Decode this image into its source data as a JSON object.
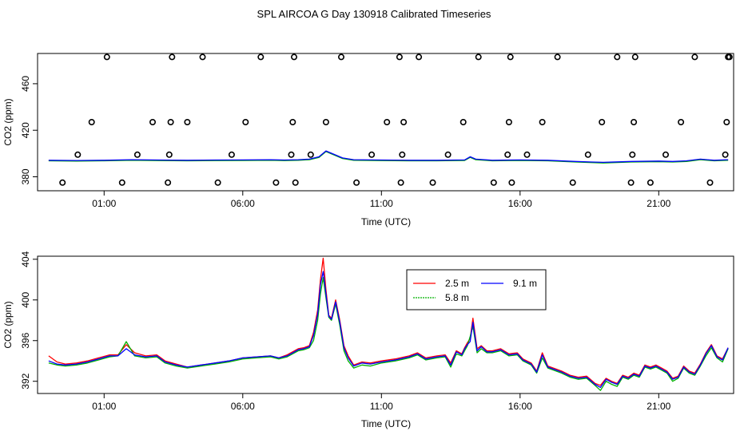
{
  "title": "SPL AIRCOA G  Day 130918  Calibrated Timeseries",
  "chart_data": [
    {
      "type": "scatter",
      "name": "calibration-plot",
      "xlabel": "Time (UTC)",
      "ylabel": "CO2 (ppm)",
      "xlim": [
        -1.4,
        23.7
      ],
      "ylim": [
        368,
        486
      ],
      "xticks": [
        1,
        6,
        11,
        16,
        21
      ],
      "xtick_labels": [
        "01:00",
        "06:00",
        "11:00",
        "16:00",
        "21:00"
      ],
      "yticks": [
        380,
        420,
        460
      ],
      "ytick_labels": [
        "380",
        "420",
        "460"
      ],
      "marker_series": {
        "name": "calibration-points",
        "x": [
          -0.5,
          0.05,
          0.55,
          1.1,
          1.65,
          2.2,
          2.75,
          3.3,
          3.35,
          3.4,
          3.45,
          4.0,
          4.55,
          5.1,
          5.6,
          6.1,
          6.65,
          7.2,
          7.75,
          7.8,
          7.85,
          7.9,
          8.45,
          9.0,
          9.55,
          10.1,
          10.65,
          11.2,
          11.65,
          11.7,
          11.75,
          11.8,
          12.35,
          12.85,
          13.4,
          13.95,
          14.5,
          15.05,
          15.55,
          15.6,
          15.65,
          15.7,
          16.25,
          16.8,
          17.35,
          17.9,
          18.45,
          18.95,
          19.5,
          20.0,
          20.05,
          20.1,
          20.15,
          20.7,
          21.25,
          21.8,
          22.3,
          22.85,
          23.4,
          23.45,
          23.5,
          23.55
        ],
        "y": [
          375,
          399,
          427,
          483,
          375,
          399,
          427,
          375,
          399,
          427,
          483,
          427,
          483,
          375,
          399,
          427,
          483,
          375,
          399,
          427,
          483,
          375,
          399,
          427,
          483,
          375,
          399,
          427,
          483,
          375,
          399,
          427,
          483,
          375,
          399,
          427,
          483,
          375,
          399,
          427,
          483,
          375,
          399,
          427,
          483,
          375,
          399,
          427,
          483,
          375,
          399,
          427,
          483,
          375,
          399,
          427,
          483,
          375,
          399,
          427,
          483,
          483
        ]
      },
      "line_series": [
        {
          "name": "2.5 m",
          "color": "#ff0000",
          "offset": 0.0
        },
        {
          "name": "5.8 m",
          "color": "#00b000",
          "offset": -0.3
        },
        {
          "name": "9.1 m",
          "color": "#0000ff",
          "offset": 0.2
        }
      ],
      "base_line": {
        "x": [
          -1.0,
          0.0,
          1.0,
          2.0,
          3.0,
          4.0,
          5.0,
          6.0,
          7.0,
          7.5,
          8.0,
          8.4,
          8.75,
          9.0,
          9.3,
          9.6,
          10.0,
          11.0,
          12.0,
          13.0,
          14.0,
          14.2,
          14.4,
          15.0,
          16.0,
          17.0,
          18.0,
          18.6,
          19.0,
          20.0,
          21.0,
          21.5,
          22.0,
          22.5,
          23.0,
          23.5
        ],
        "y": [
          394,
          393.8,
          394,
          394.5,
          394.2,
          394,
          394.2,
          394.3,
          394.5,
          394.2,
          394.5,
          395,
          397,
          402,
          399,
          396,
          394.5,
          394.2,
          394,
          394,
          394.3,
          397,
          395,
          394,
          394.3,
          394,
          393,
          392.5,
          392.2,
          393,
          393.3,
          393,
          393.5,
          395,
          394,
          394.5
        ]
      }
    },
    {
      "type": "line",
      "name": "timeseries-plot",
      "xlabel": "Time (UTC)",
      "ylabel": "CO2 (ppm)",
      "xlim": [
        -1.4,
        23.7
      ],
      "ylim": [
        390.8,
        404.3
      ],
      "xticks": [
        1,
        6,
        11,
        16,
        21
      ],
      "xtick_labels": [
        "01:00",
        "06:00",
        "11:00",
        "16:00",
        "21:00"
      ],
      "yticks": [
        392,
        396,
        400,
        404
      ],
      "ytick_labels": [
        "392",
        "396",
        "400",
        "404"
      ],
      "legend": {
        "position": "top-center",
        "entries": [
          "2.5 m",
          "9.1 m",
          "5.8 m"
        ]
      },
      "series": [
        {
          "name": "2.5 m",
          "color": "#ff0000",
          "x": [
            -1.0,
            -0.7,
            -0.4,
            0.0,
            0.4,
            0.8,
            1.2,
            1.5,
            1.8,
            2.1,
            2.5,
            2.9,
            3.2,
            3.6,
            4.0,
            4.5,
            5.0,
            5.5,
            6.0,
            6.5,
            7.0,
            7.3,
            7.6,
            8.0,
            8.2,
            8.4,
            8.55,
            8.7,
            8.8,
            8.9,
            9.0,
            9.1,
            9.2,
            9.35,
            9.5,
            9.65,
            9.8,
            10.0,
            10.3,
            10.6,
            11.0,
            11.5,
            12.0,
            12.3,
            12.6,
            13.0,
            13.3,
            13.5,
            13.7,
            13.9,
            14.0,
            14.1,
            14.2,
            14.3,
            14.45,
            14.6,
            14.8,
            15.0,
            15.3,
            15.6,
            15.9,
            16.1,
            16.4,
            16.6,
            16.8,
            17.0,
            17.2,
            17.5,
            17.8,
            18.1,
            18.4,
            18.7,
            18.9,
            19.1,
            19.3,
            19.5,
            19.7,
            19.9,
            20.1,
            20.3,
            20.5,
            20.7,
            20.9,
            21.1,
            21.3,
            21.5,
            21.7,
            21.9,
            22.1,
            22.3,
            22.5,
            22.7,
            22.9,
            23.1,
            23.3,
            23.5
          ],
          "y": [
            394.5,
            393.9,
            393.7,
            393.8,
            394.0,
            394.3,
            394.6,
            394.6,
            395.6,
            394.8,
            394.5,
            394.6,
            394.0,
            393.7,
            393.4,
            393.6,
            393.8,
            394.0,
            394.3,
            394.4,
            394.5,
            394.3,
            394.6,
            395.2,
            395.3,
            395.5,
            396.8,
            399.0,
            402.0,
            404.1,
            401.0,
            398.5,
            398.2,
            400.0,
            398.0,
            395.5,
            394.5,
            393.6,
            393.9,
            393.8,
            394.0,
            394.2,
            394.5,
            394.8,
            394.3,
            394.5,
            394.6,
            393.8,
            395.0,
            394.7,
            395.3,
            395.8,
            396.2,
            398.2,
            395.2,
            395.5,
            395.0,
            395.0,
            395.2,
            394.7,
            394.8,
            394.2,
            393.8,
            393.0,
            394.8,
            393.5,
            393.3,
            393.0,
            392.6,
            392.4,
            392.5,
            391.8,
            391.6,
            392.3,
            392.0,
            391.8,
            392.6,
            392.4,
            392.8,
            392.6,
            393.6,
            393.4,
            393.6,
            393.3,
            393.0,
            392.3,
            392.5,
            393.5,
            393.0,
            392.8,
            393.7,
            394.8,
            395.6,
            394.5,
            394.2,
            395.3
          ]
        },
        {
          "name": "5.8 m",
          "color": "#00b000",
          "x": [
            -1.0,
            -0.7,
            -0.4,
            0.0,
            0.4,
            0.8,
            1.2,
            1.5,
            1.8,
            2.1,
            2.5,
            2.9,
            3.2,
            3.6,
            4.0,
            4.5,
            5.0,
            5.5,
            6.0,
            6.5,
            7.0,
            7.3,
            7.6,
            8.0,
            8.2,
            8.4,
            8.55,
            8.7,
            8.8,
            8.9,
            9.0,
            9.1,
            9.2,
            9.35,
            9.5,
            9.65,
            9.8,
            10.0,
            10.3,
            10.6,
            11.0,
            11.5,
            12.0,
            12.3,
            12.6,
            13.0,
            13.3,
            13.5,
            13.7,
            13.9,
            14.0,
            14.1,
            14.2,
            14.3,
            14.45,
            14.6,
            14.8,
            15.0,
            15.3,
            15.6,
            15.9,
            16.1,
            16.4,
            16.6,
            16.8,
            17.0,
            17.2,
            17.5,
            17.8,
            18.1,
            18.4,
            18.7,
            18.9,
            19.1,
            19.3,
            19.5,
            19.7,
            19.9,
            20.1,
            20.3,
            20.5,
            20.7,
            20.9,
            21.1,
            21.3,
            21.5,
            21.7,
            21.9,
            22.1,
            22.3,
            22.5,
            22.7,
            22.9,
            23.1,
            23.3,
            23.5
          ],
          "y": [
            393.8,
            393.6,
            393.5,
            393.6,
            393.8,
            394.1,
            394.4,
            394.5,
            395.9,
            394.5,
            394.3,
            394.4,
            393.8,
            393.5,
            393.3,
            393.5,
            393.7,
            393.9,
            394.2,
            394.3,
            394.4,
            394.2,
            394.4,
            395.0,
            395.1,
            395.3,
            396.0,
            398.0,
            400.6,
            402.2,
            400.2,
            398.3,
            398.0,
            399.6,
            397.5,
            395.0,
            394.0,
            393.3,
            393.6,
            393.5,
            393.8,
            394.0,
            394.3,
            394.6,
            394.1,
            394.3,
            394.4,
            393.4,
            394.7,
            394.5,
            395.0,
            395.5,
            396.4,
            397.4,
            394.8,
            395.2,
            394.8,
            394.8,
            395.0,
            394.5,
            394.6,
            394.0,
            393.6,
            392.8,
            394.3,
            393.3,
            393.1,
            392.8,
            392.4,
            392.2,
            392.3,
            391.6,
            391.1,
            392.0,
            391.7,
            391.5,
            392.4,
            392.2,
            392.6,
            392.4,
            393.4,
            393.2,
            393.4,
            393.1,
            392.8,
            392.0,
            392.3,
            393.3,
            392.8,
            392.6,
            393.5,
            394.5,
            395.3,
            394.3,
            393.9,
            395.2
          ]
        },
        {
          "name": "9.1 m",
          "color": "#0000ff",
          "x": [
            -1.0,
            -0.7,
            -0.4,
            0.0,
            0.4,
            0.8,
            1.2,
            1.5,
            1.8,
            2.1,
            2.5,
            2.9,
            3.2,
            3.6,
            4.0,
            4.5,
            5.0,
            5.5,
            6.0,
            6.5,
            7.0,
            7.3,
            7.6,
            8.0,
            8.2,
            8.4,
            8.55,
            8.7,
            8.8,
            8.9,
            9.0,
            9.1,
            9.2,
            9.35,
            9.5,
            9.65,
            9.8,
            10.0,
            10.3,
            10.6,
            11.0,
            11.5,
            12.0,
            12.3,
            12.6,
            13.0,
            13.3,
            13.5,
            13.7,
            13.9,
            14.0,
            14.1,
            14.2,
            14.3,
            14.45,
            14.6,
            14.8,
            15.0,
            15.3,
            15.6,
            15.9,
            16.1,
            16.4,
            16.6,
            16.8,
            17.0,
            17.2,
            17.5,
            17.8,
            18.1,
            18.4,
            18.7,
            18.9,
            19.1,
            19.3,
            19.5,
            19.7,
            19.9,
            20.1,
            20.3,
            20.5,
            20.7,
            20.9,
            21.1,
            21.3,
            21.5,
            21.7,
            21.9,
            22.1,
            22.3,
            22.5,
            22.7,
            22.9,
            23.1,
            23.3,
            23.5
          ],
          "y": [
            394.0,
            393.7,
            393.6,
            393.7,
            393.9,
            394.2,
            394.5,
            394.5,
            395.2,
            394.6,
            394.4,
            394.5,
            393.9,
            393.6,
            393.4,
            393.6,
            393.8,
            394.0,
            394.3,
            394.4,
            394.5,
            394.3,
            394.5,
            395.1,
            395.2,
            395.4,
            396.5,
            398.6,
            401.5,
            402.8,
            400.6,
            398.4,
            398.1,
            399.8,
            397.8,
            395.3,
            394.3,
            393.5,
            393.8,
            393.7,
            393.9,
            394.1,
            394.4,
            394.7,
            394.2,
            394.4,
            394.5,
            393.6,
            394.9,
            394.6,
            395.2,
            395.6,
            395.9,
            397.8,
            395.0,
            395.4,
            394.9,
            394.9,
            395.1,
            394.6,
            394.7,
            394.1,
            393.7,
            392.9,
            394.6,
            393.4,
            393.2,
            392.9,
            392.5,
            392.3,
            392.4,
            391.7,
            391.4,
            392.2,
            391.9,
            391.7,
            392.5,
            392.3,
            392.7,
            392.5,
            393.5,
            393.3,
            393.5,
            393.2,
            392.9,
            392.2,
            392.4,
            393.4,
            392.9,
            392.7,
            393.6,
            394.7,
            395.5,
            394.4,
            394.1,
            395.3
          ]
        }
      ]
    }
  ]
}
